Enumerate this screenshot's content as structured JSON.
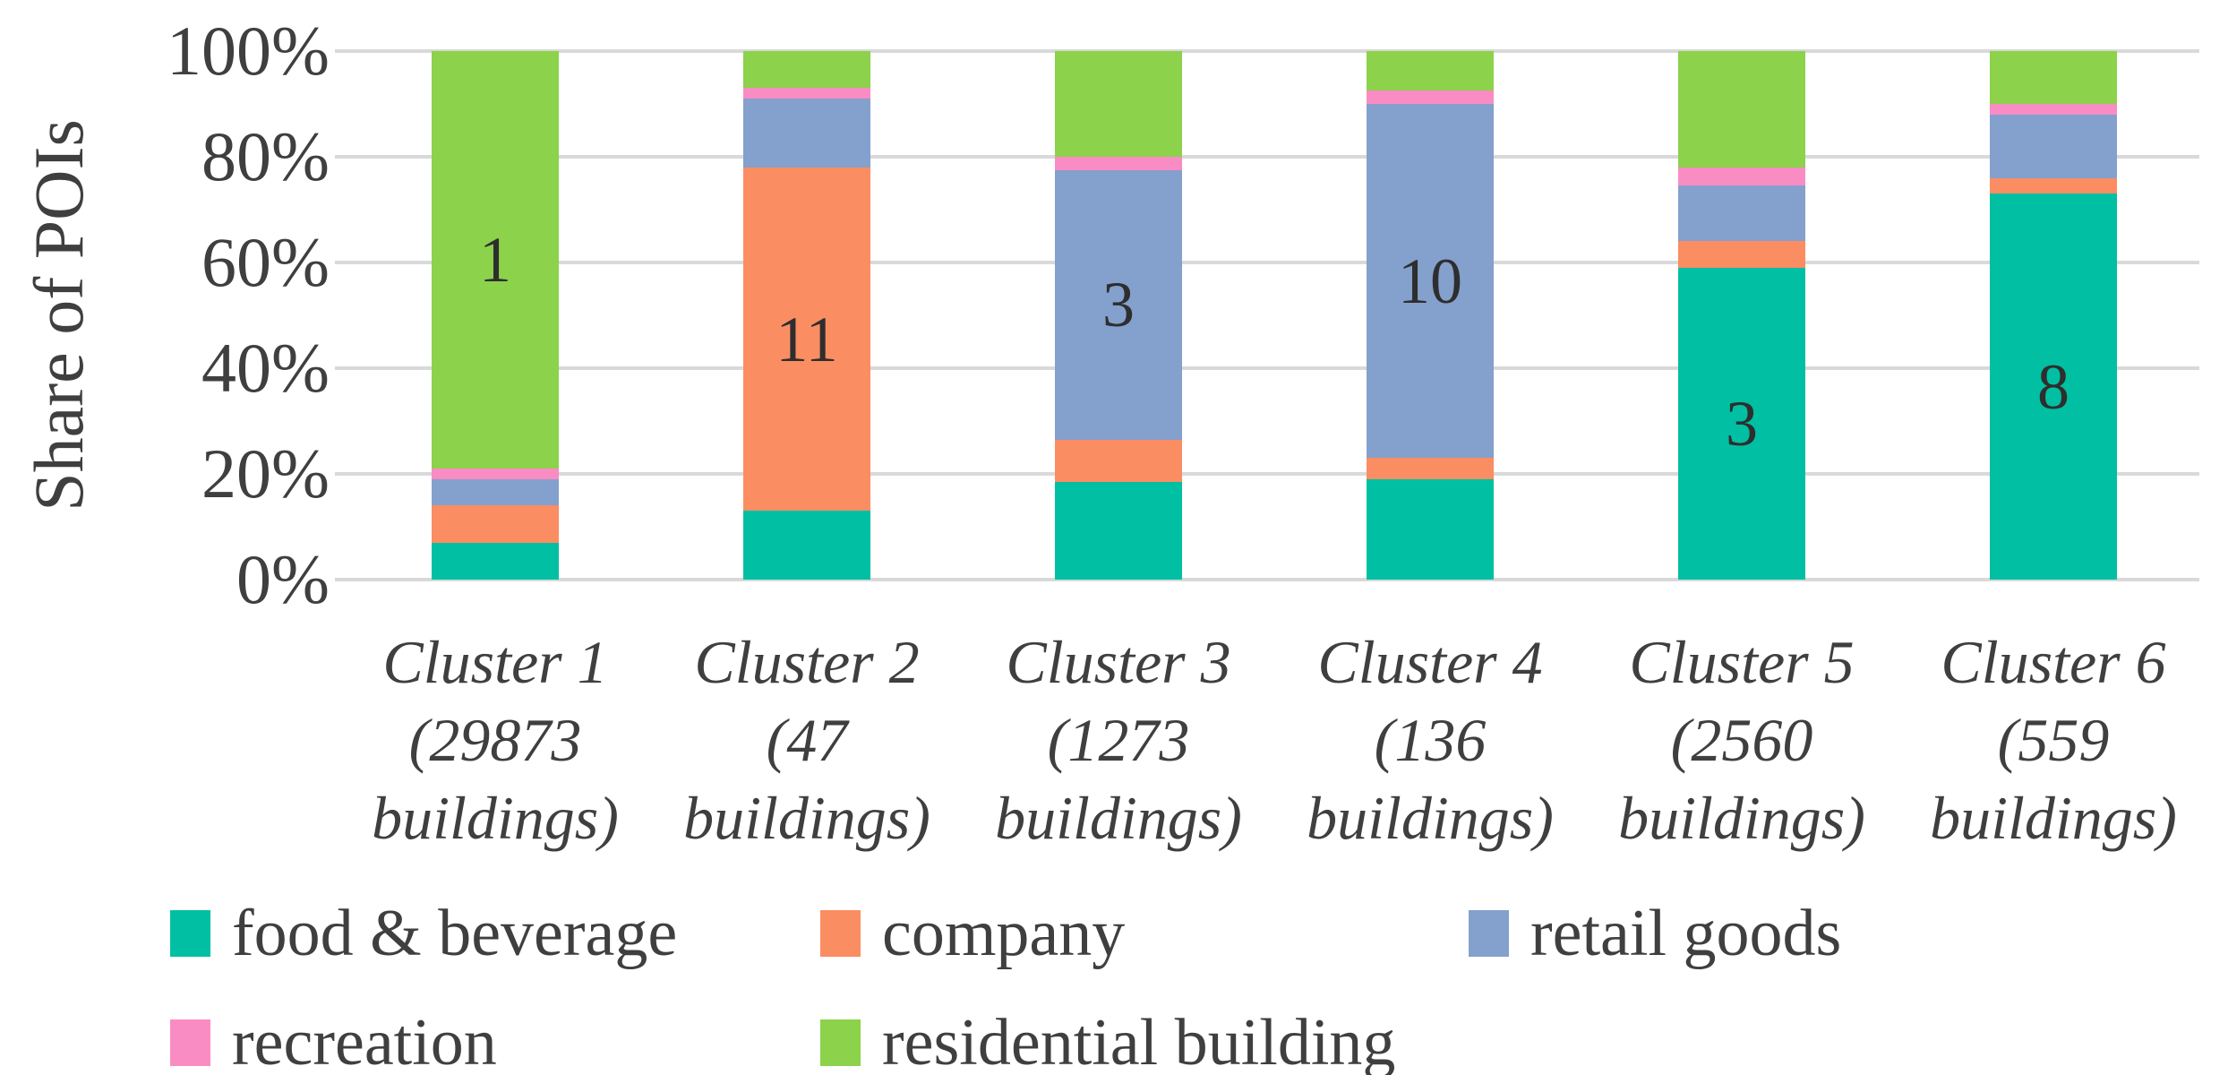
{
  "chart": {
    "ylabel": "Share of POIs",
    "y_ticks": [
      {
        "label": "100%",
        "value": 100
      },
      {
        "label": "80%",
        "value": 80
      },
      {
        "label": "60%",
        "value": 60
      },
      {
        "label": "40%",
        "value": 40
      },
      {
        "label": "20%",
        "value": 20
      },
      {
        "label": "0%",
        "value": 0
      }
    ]
  },
  "chart_data": {
    "type": "bar",
    "stacked": true,
    "percent_stacked": true,
    "title": "",
    "xlabel": "",
    "ylabel": "Share of POIs",
    "ylim": [
      0,
      100
    ],
    "grid": true,
    "legend_position": "bottom",
    "categories": [
      "Cluster 1 (29873 buildings)",
      "Cluster 2 (47 buildings)",
      "Cluster 3 (1273 buildings)",
      "Cluster 4 (136 buildings)",
      "Cluster 5 (2560 buildings)",
      "Cluster 6 (559 buildings)"
    ],
    "category_lines": [
      [
        "Cluster 1",
        "(29873",
        "buildings)"
      ],
      [
        "Cluster 2",
        "(47",
        "buildings)"
      ],
      [
        "Cluster 3",
        "(1273",
        "buildings)"
      ],
      [
        "Cluster 4",
        "(136",
        "buildings)"
      ],
      [
        "Cluster 5",
        "(2560",
        "buildings)"
      ],
      [
        "Cluster 6",
        "(559",
        "buildings)"
      ]
    ],
    "building_counts": [
      29873,
      47,
      1273,
      136,
      2560,
      559
    ],
    "series": [
      {
        "name": "food & beverage",
        "color": "#00BFA2",
        "values": [
          7,
          13,
          18.5,
          19,
          59,
          73
        ]
      },
      {
        "name": "company",
        "color": "#FB8D62",
        "values": [
          7,
          65,
          8,
          4,
          5,
          3
        ]
      },
      {
        "name": "retail goods",
        "color": "#84A0CD",
        "values": [
          5,
          13,
          51,
          67,
          10.5,
          12
        ]
      },
      {
        "name": "recreation",
        "color": "#FA8CC4",
        "values": [
          2,
          2,
          2.5,
          2.5,
          3.5,
          2
        ]
      },
      {
        "name": "residential building",
        "color": "#8CD24B",
        "values": [
          79,
          7,
          20,
          7.5,
          22,
          10
        ]
      }
    ],
    "bar_value_labels": [
      {
        "category_index": 0,
        "text": "1",
        "series_index": 4
      },
      {
        "category_index": 1,
        "text": "11",
        "series_index": 1
      },
      {
        "category_index": 2,
        "text": "3",
        "series_index": 2
      },
      {
        "category_index": 3,
        "text": "10",
        "series_index": 2
      },
      {
        "category_index": 4,
        "text": "3",
        "series_index": 0
      },
      {
        "category_index": 5,
        "text": "8",
        "series_index": 0
      }
    ]
  },
  "legend": {
    "rows": [
      [
        "food & beverage",
        "company",
        "retail goods"
      ],
      [
        "recreation",
        "residential building"
      ]
    ]
  }
}
